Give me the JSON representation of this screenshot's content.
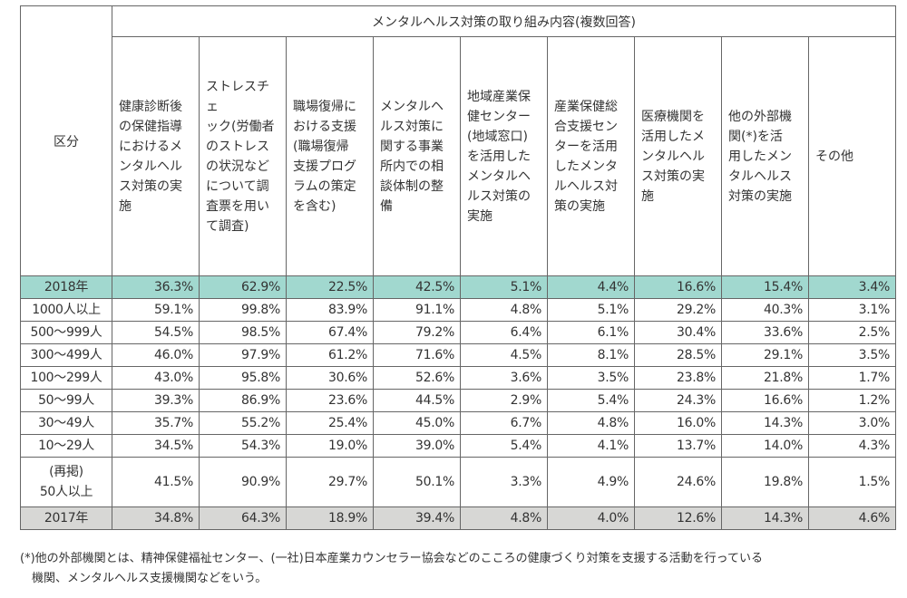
{
  "table": {
    "title": "メンタルヘルス対策の取り組み内容(複数回答)",
    "row_header": "区分",
    "columns": [
      "健康診断後\nの保健指導\nにおけるメ\nンタルヘル\nス対策の実\n施",
      "ストレスチェ\nック(労働者\nのストレス\nの状況など\nについて調\n査票を用い\nて調査)",
      "職場復帰に\nおける支援\n(職場復帰\n支援プログ\nラムの策定\nを含む)",
      "メンタルヘ\nルス対策に\n関する事業\n所内での相\n談体制の整\n備",
      "地域産業保\n健センター\n(地域窓口)\nを活用した\nメンタルヘ\nルス対策の\n実施",
      "産業保健総\n合支援セン\nターを活用\nしたメンタ\nルヘルス対\n策の実施",
      "医療機関を\n活用したメ\nンタルヘル\nス対策の実\n施",
      "他の外部機\n関(*)を活\n用したメン\nタルヘルス\n対策の実施",
      "その他"
    ],
    "rows": [
      {
        "label": "2018年",
        "values": [
          "36.3%",
          "62.9%",
          "22.5%",
          "42.5%",
          "5.1%",
          "4.4%",
          "16.6%",
          "15.4%",
          "3.4%"
        ]
      },
      {
        "label": "1000人以上",
        "values": [
          "59.1%",
          "99.8%",
          "83.9%",
          "91.1%",
          "4.8%",
          "5.1%",
          "29.2%",
          "40.3%",
          "3.1%"
        ]
      },
      {
        "label": "500～999人",
        "values": [
          "54.5%",
          "98.5%",
          "67.4%",
          "79.2%",
          "6.4%",
          "6.1%",
          "30.4%",
          "33.6%",
          "2.5%"
        ]
      },
      {
        "label": "300～499人",
        "values": [
          "46.0%",
          "97.9%",
          "61.2%",
          "71.6%",
          "4.5%",
          "8.1%",
          "28.5%",
          "29.1%",
          "3.5%"
        ]
      },
      {
        "label": "100～299人",
        "values": [
          "43.0%",
          "95.8%",
          "30.6%",
          "52.6%",
          "3.6%",
          "3.5%",
          "23.8%",
          "21.8%",
          "1.7%"
        ]
      },
      {
        "label": "50～99人",
        "values": [
          "39.3%",
          "86.9%",
          "23.6%",
          "44.5%",
          "2.9%",
          "5.4%",
          "24.3%",
          "16.6%",
          "1.2%"
        ]
      },
      {
        "label": "30～49人",
        "values": [
          "35.7%",
          "55.2%",
          "25.4%",
          "45.0%",
          "6.7%",
          "4.8%",
          "16.0%",
          "14.3%",
          "3.0%"
        ]
      },
      {
        "label": "10～29人",
        "values": [
          "34.5%",
          "54.3%",
          "19.0%",
          "39.0%",
          "5.4%",
          "4.1%",
          "13.7%",
          "14.0%",
          "4.3%"
        ]
      },
      {
        "label": "(再掲)\n50人以上",
        "values": [
          "41.5%",
          "90.9%",
          "29.7%",
          "50.1%",
          "3.3%",
          "4.9%",
          "24.6%",
          "19.8%",
          "1.5%"
        ]
      },
      {
        "label": "2017年",
        "values": [
          "34.8%",
          "64.3%",
          "18.9%",
          "39.4%",
          "4.8%",
          "4.0%",
          "12.6%",
          "14.3%",
          "4.6%"
        ]
      }
    ]
  },
  "colors": {
    "highlight_2018": "#a1d8cf",
    "highlight_2017": "#d7d7d5"
  },
  "note": "(*)他の外部機関とは、精神保健福祉センター、(一社)日本産業カウンセラー協会などのこころの健康づくり対策を支援する活動を行っている\n　機関、メンタルヘルス支援機関などをいう。"
}
